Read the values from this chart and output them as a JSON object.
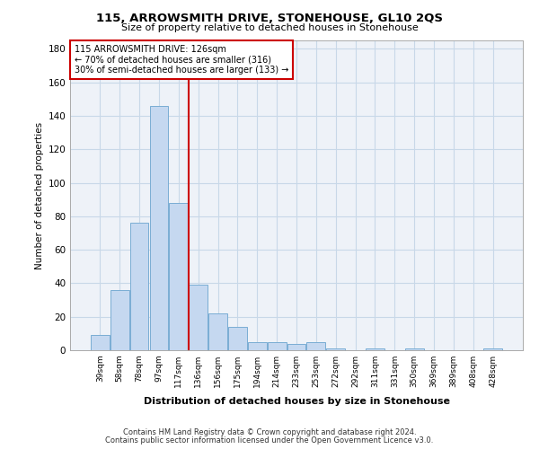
{
  "title1": "115, ARROWSMITH DRIVE, STONEHOUSE, GL10 2QS",
  "title2": "Size of property relative to detached houses in Stonehouse",
  "xlabel": "Distribution of detached houses by size in Stonehouse",
  "ylabel": "Number of detached properties",
  "categories": [
    "39sqm",
    "58sqm",
    "78sqm",
    "97sqm",
    "117sqm",
    "136sqm",
    "156sqm",
    "175sqm",
    "194sqm",
    "214sqm",
    "233sqm",
    "253sqm",
    "272sqm",
    "292sqm",
    "311sqm",
    "331sqm",
    "350sqm",
    "369sqm",
    "389sqm",
    "408sqm",
    "428sqm"
  ],
  "values": [
    9,
    36,
    76,
    146,
    88,
    39,
    22,
    14,
    5,
    5,
    4,
    5,
    1,
    0,
    1,
    0,
    1,
    0,
    0,
    0,
    1
  ],
  "bar_color": "#c5d8f0",
  "bar_edge_color": "#7aadd4",
  "vline_x": 4.5,
  "vline_color": "#cc0000",
  "annotation_text": "115 ARROWSMITH DRIVE: 126sqm\n← 70% of detached houses are smaller (316)\n30% of semi-detached houses are larger (133) →",
  "annotation_box_color": "#cc0000",
  "ylim": [
    0,
    185
  ],
  "yticks": [
    0,
    20,
    40,
    60,
    80,
    100,
    120,
    140,
    160,
    180
  ],
  "grid_color": "#c8d8e8",
  "background_color": "#eef2f8",
  "footer1": "Contains HM Land Registry data © Crown copyright and database right 2024.",
  "footer2": "Contains public sector information licensed under the Open Government Licence v3.0."
}
